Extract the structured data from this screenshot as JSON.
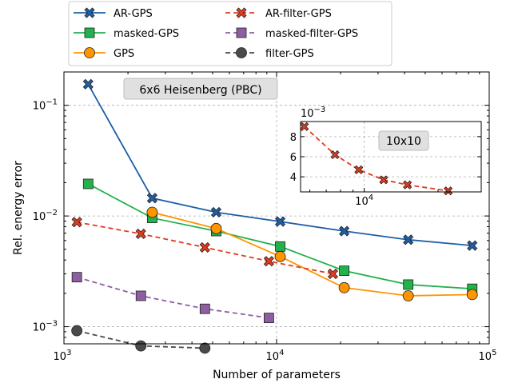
{
  "chart_data": [
    {
      "type": "line",
      "xscale": "log",
      "yscale": "log",
      "xlabel": "Number of parameters",
      "ylabel": "Rel. energy error",
      "xlim": [
        1000,
        100000
      ],
      "ylim": [
        0.0007,
        0.2
      ],
      "x_ticks": [
        {
          "base": "10",
          "exp": "3",
          "value": 1000
        },
        {
          "base": "10",
          "exp": "4",
          "value": 10000
        },
        {
          "base": "10",
          "exp": "5",
          "value": 100000
        }
      ],
      "y_ticks": [
        {
          "base": "10",
          "exp": "−3",
          "value": 0.001
        },
        {
          "base": "10",
          "exp": "−2",
          "value": 0.01
        },
        {
          "base": "10",
          "exp": "−1",
          "value": 0.1
        }
      ],
      "grid": true,
      "legend": "top, outside plot, two columns",
      "annotation": "6x6 Heisenberg (PBC)",
      "series": [
        {
          "name": "AR-GPS",
          "color": "#1f5fa8",
          "marker": "x",
          "dashed": false,
          "x": [
            1300,
            2600,
            5200,
            10400,
            20800,
            41600,
            83200
          ],
          "y": [
            0.155,
            0.0145,
            0.0108,
            0.0089,
            0.0073,
            0.0061,
            0.0054
          ]
        },
        {
          "name": "masked-GPS",
          "color": "#22b14c",
          "marker": "square",
          "dashed": false,
          "x": [
            1300,
            2600,
            5200,
            10400,
            20800,
            41600,
            83200
          ],
          "y": [
            0.0195,
            0.0096,
            0.0073,
            0.0053,
            0.0032,
            0.0024,
            0.0022
          ]
        },
        {
          "name": "GPS",
          "color": "#ff9500",
          "marker": "circle",
          "dashed": false,
          "x": [
            2600,
            5200,
            10400,
            20800,
            41600,
            83200
          ],
          "y": [
            0.0108,
            0.0077,
            0.0043,
            0.00225,
            0.0019,
            0.00195
          ]
        },
        {
          "name": "AR-filter-GPS",
          "color": "#e03c1f",
          "marker": "x",
          "dashed": true,
          "x": [
            1150,
            2300,
            4600,
            9200,
            18400
          ],
          "y": [
            0.0088,
            0.0069,
            0.0052,
            0.0039,
            0.003
          ]
        },
        {
          "name": "masked-filter-GPS",
          "color": "#8e5ea2",
          "marker": "square",
          "dashed": true,
          "x": [
            1150,
            2300,
            4600,
            9200
          ],
          "y": [
            0.0028,
            0.0019,
            0.00145,
            0.0012
          ]
        },
        {
          "name": "filter-GPS",
          "color": "#4a4a4a",
          "marker": "circle",
          "dashed": true,
          "x": [
            1150,
            2300,
            4600
          ],
          "y": [
            0.00092,
            0.00067,
            0.00064
          ]
        }
      ]
    },
    {
      "type": "line",
      "inset": true,
      "annotation": "10x10",
      "xscale": "log",
      "xlim": [
        5500,
        30000
      ],
      "ylim": [
        2.5,
        9.5
      ],
      "y_multiplier": "10−3",
      "y_ticks": [
        "4",
        "6",
        "8"
      ],
      "x_ticks": [
        {
          "base": "10",
          "exp": "4",
          "value": 10000
        }
      ],
      "series": [
        {
          "name": "AR-filter-GPS",
          "color": "#e03c1f",
          "marker": "x",
          "dashed": true,
          "x": [
            5700,
            7600,
            9500,
            12000,
            15000,
            22000
          ],
          "y": [
            9.0,
            6.2,
            4.7,
            3.7,
            3.2,
            2.6
          ]
        }
      ]
    }
  ]
}
